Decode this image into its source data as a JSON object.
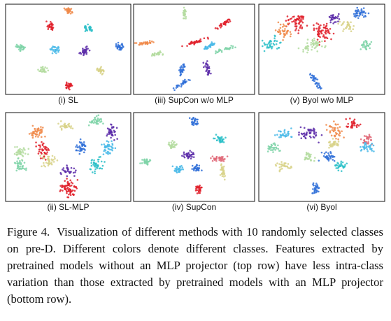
{
  "panels": [
    {
      "label": "(i) SL"
    },
    {
      "label": "(iii) SupCon w/o MLP"
    },
    {
      "label": "(v) Byol w/o MLP"
    },
    {
      "label": "(ii) SL-MLP"
    },
    {
      "label": "(iv) SupCon"
    },
    {
      "label": "(vi) Byol"
    }
  ],
  "caption": {
    "title": "Figure 4.",
    "text": "Visualization of different methods with 10 randomly selected classes on pre-D. Different colors denote different classes. Features extracted by pretrained models without an MLP projector (top row) have less intra-class variation than those extracted by pretrained models with an MLP projector (bottom row)."
  }
}
